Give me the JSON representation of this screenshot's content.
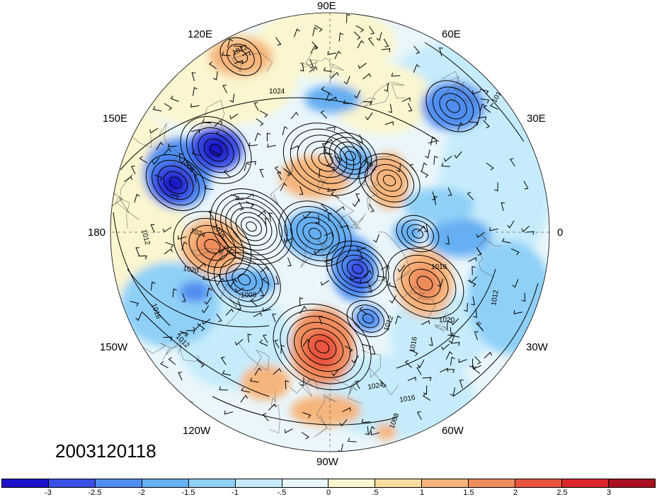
{
  "longitude_labels": {
    "e90": "90E",
    "e60": "60E",
    "e120": "120E",
    "e150": "150E",
    "e30": "30E",
    "w180": "180",
    "e0": "0",
    "w150": "150W",
    "w30": "30W",
    "w120": "120W",
    "w60": "60W",
    "w90": "90W"
  },
  "timestamp": "2003120118",
  "contour_labels": [
    "1012",
    "1024",
    "1004",
    "1008",
    "1016",
    "1024",
    "1020",
    "1012",
    "1016",
    "1012",
    "1008",
    "1012",
    "1016",
    "1020",
    "1016",
    "1012",
    "1024",
    "1016",
    "1012",
    "1008"
  ],
  "colorbar": {
    "colors": [
      "#1d12c8",
      "#3a4fe6",
      "#4f8ef0",
      "#66aff2",
      "#8fd0f7",
      "#c6ecfb",
      "#e9f7fc",
      "#fbf6cf",
      "#fbdca0",
      "#f6b57c",
      "#ef8c5c",
      "#e8553f",
      "#d8262a",
      "#a81020"
    ],
    "tick_labels": [
      "-3",
      "-2.5",
      "-2",
      "-1.5",
      "-1",
      "-.5",
      "0",
      ".5",
      "1",
      "1.5",
      "2",
      "2.5",
      "3"
    ]
  }
}
